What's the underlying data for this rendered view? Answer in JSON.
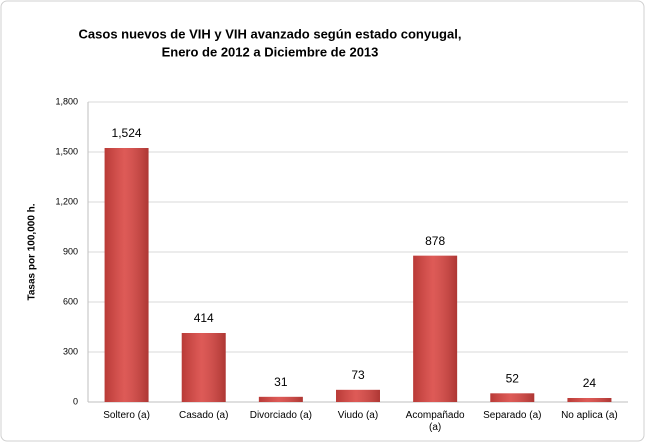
{
  "chart_data": {
    "type": "bar",
    "title": [
      "Casos nuevos de VIH y VIH avanzado según estado conyugal,",
      "Enero de 2012 a Diciembre de 2013"
    ],
    "y_label": "Tasas por 100,000 h.",
    "categories": [
      "Soltero (a)",
      "Casado (a)",
      "Divorciado (a)",
      "Viudo (a)",
      "Acompañado (a)",
      "Separado (a)",
      "No aplica (a)"
    ],
    "values": [
      1524,
      414,
      31,
      73,
      878,
      52,
      24
    ],
    "value_labels": [
      "1,524",
      "414",
      "31",
      "73",
      "878",
      "52",
      "24"
    ],
    "color": "#d94440",
    "ylim": [
      0,
      1800
    ],
    "yticks": [
      0,
      300,
      600,
      900,
      {
        "value": 1200,
        "label": "1,200"
      },
      {
        "value": 1500,
        "label": "1,500"
      },
      {
        "value": 1800,
        "label": "1,800"
      }
    ],
    "grid": true
  }
}
